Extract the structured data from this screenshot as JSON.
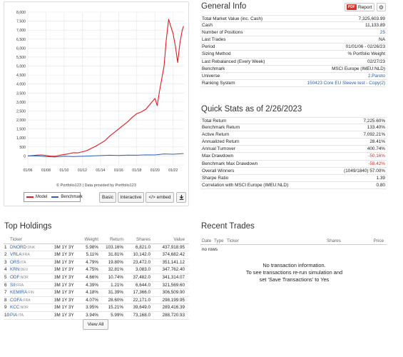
{
  "chart": {
    "credit": "© Portfolio123 | Data provided by Portfolio123",
    "buttons": {
      "basic": "Basic",
      "interactive": "Interactive",
      "embed": "</> embed",
      "download_icon": "download-icon"
    },
    "colors": {
      "model": "#e3191c",
      "benchmark": "#2c63b4"
    }
  },
  "chart_data": {
    "type": "line",
    "x_tick_labels": [
      "01/06",
      "01/08",
      "01/10",
      "01/12",
      "01/14",
      "01/16",
      "01/18",
      "01/20",
      "01/22"
    ],
    "y_tick_labels": [
      "0",
      "500",
      "1,000",
      "1,500",
      "2,000",
      "2,500",
      "3,000",
      "3,500",
      "4,000",
      "4,500",
      "5,000",
      "5,500",
      "6,000",
      "6,500",
      "7,000",
      "7,500",
      "8,000"
    ],
    "ylim": [
      -500,
      8000
    ],
    "grid": true,
    "legend_position": "bottom-left",
    "series": [
      {
        "name": "Model",
        "points": [
          [
            2006.0,
            0
          ],
          [
            2006.5,
            20
          ],
          [
            2007.0,
            45
          ],
          [
            2007.5,
            55
          ],
          [
            2008.0,
            30
          ],
          [
            2008.5,
            -10
          ],
          [
            2009.0,
            -20
          ],
          [
            2009.5,
            40
          ],
          [
            2010.0,
            80
          ],
          [
            2010.5,
            120
          ],
          [
            2011.0,
            180
          ],
          [
            2011.5,
            170
          ],
          [
            2012.0,
            230
          ],
          [
            2012.5,
            300
          ],
          [
            2013.0,
            420
          ],
          [
            2013.5,
            550
          ],
          [
            2014.0,
            700
          ],
          [
            2014.5,
            850
          ],
          [
            2015.0,
            1100
          ],
          [
            2015.5,
            1300
          ],
          [
            2016.0,
            1500
          ],
          [
            2016.5,
            1700
          ],
          [
            2017.0,
            1900
          ],
          [
            2017.5,
            2150
          ],
          [
            2018.0,
            2350
          ],
          [
            2018.5,
            2450
          ],
          [
            2019.0,
            2600
          ],
          [
            2019.5,
            2900
          ],
          [
            2020.0,
            3200
          ],
          [
            2020.25,
            2800
          ],
          [
            2020.5,
            3600
          ],
          [
            2020.75,
            4300
          ],
          [
            2021.0,
            5000
          ],
          [
            2021.25,
            6500
          ],
          [
            2021.5,
            7600
          ],
          [
            2021.75,
            7200
          ],
          [
            2022.0,
            6800
          ],
          [
            2022.25,
            6100
          ],
          [
            2022.5,
            5200
          ],
          [
            2022.75,
            6300
          ],
          [
            2023.0,
            7000
          ],
          [
            2023.15,
            7225
          ]
        ]
      },
      {
        "name": "Benchmark",
        "points": [
          [
            2006.0,
            0
          ],
          [
            2007.0,
            10
          ],
          [
            2008.0,
            -40
          ],
          [
            2009.0,
            -60
          ],
          [
            2010.0,
            -20
          ],
          [
            2011.0,
            -30
          ],
          [
            2012.0,
            -20
          ],
          [
            2013.0,
            0
          ],
          [
            2014.0,
            20
          ],
          [
            2015.0,
            40
          ],
          [
            2016.0,
            30
          ],
          [
            2017.0,
            50
          ],
          [
            2018.0,
            40
          ],
          [
            2019.0,
            60
          ],
          [
            2020.0,
            55
          ],
          [
            2021.0,
            110
          ],
          [
            2022.0,
            95
          ],
          [
            2023.15,
            133
          ]
        ]
      }
    ]
  },
  "general_info": {
    "title": "General Info",
    "report_label": "Report",
    "pdf_badge": "PDF",
    "rows": [
      {
        "label": "Total Market Value (inc. Cash)",
        "value": "7,325,603.99"
      },
      {
        "label": "Cash",
        "value": "11,133.89"
      },
      {
        "label": "Number of Positions",
        "value": "25",
        "link": true
      },
      {
        "label": "Last Trades",
        "value": "NA"
      },
      {
        "label": "Period",
        "value": "01/01/06 - 02/26/23"
      },
      {
        "label": "Sizing Method",
        "value": "% Portfolio Weight"
      },
      {
        "label": "Last Rebalanced (Every Week)",
        "value": "02/27/23"
      },
      {
        "label": "Benchmark",
        "value": "MSCI Europe (IMEU:NLD)"
      },
      {
        "label": "Universe",
        "value": "2.Pareto",
        "link": true
      },
      {
        "label": "Ranking System",
        "value": "150423 Core EU Sleeve test - Copy(2)",
        "link": true
      }
    ]
  },
  "quick_stats": {
    "title": "Quick Stats as of 2/26/2023",
    "rows": [
      {
        "label": "Total Return",
        "value": "7,225.60%"
      },
      {
        "label": "Benchmark Return",
        "value": "133.40%"
      },
      {
        "label": "Active Return",
        "value": "7,092.21%"
      },
      {
        "label": "Annualized Return",
        "value": "28.41%"
      },
      {
        "label": "Annual Turnover",
        "value": "400.74%"
      },
      {
        "label": "Max Drawdown",
        "value": "-50.16%",
        "neg": true
      },
      {
        "label": "Benchmark Max Drawdown",
        "value": "-58.42%",
        "neg": true
      },
      {
        "label": "Overall Winners",
        "value": "(1049/1840) 57.00%"
      },
      {
        "label": "Sharpe Ratio",
        "value": "1.39"
      },
      {
        "label": "Correlation with MSCI Europe (IMEU:NLD)",
        "value": "0.80"
      }
    ]
  },
  "top_holdings": {
    "title": "Top Holdings",
    "headers": {
      "ticker": "Ticker",
      "weight": "Weight",
      "return": "Return",
      "shares": "Shares",
      "value": "Value"
    },
    "period_links": "3M 1Y 3Y",
    "rows": [
      {
        "n": "1",
        "sym": "DNORD",
        "ex": ":DNK",
        "w": "5.98%",
        "r": "103.16%",
        "s": "6,821.0",
        "v": "437,918.95"
      },
      {
        "n": "2",
        "sym": "VRLA",
        "ex": ":FRA",
        "w": "5.11%",
        "r": "31.81%",
        "s": "10,142.0",
        "v": "374,682.42"
      },
      {
        "n": "3",
        "sym": "ORS",
        "ex": ":ITA",
        "w": "4.79%",
        "r": "19.80%",
        "s": "23,472.0",
        "v": "351,141.12"
      },
      {
        "n": "4",
        "sym": "KRN",
        "ex": ":DEU",
        "w": "4.75%",
        "r": "32.81%",
        "s": "3,083.0",
        "v": "347,762.40"
      },
      {
        "n": "5",
        "sym": "ODF",
        "ex": ":NOR",
        "w": "4.66%",
        "r": "10.74%",
        "s": "37,482.0",
        "v": "341,314.07"
      },
      {
        "n": "6",
        "sym": "SII",
        "ex": ":FRA",
        "w": "4.39%",
        "r": "1.21%",
        "s": "6,644.0",
        "v": "321,569.60"
      },
      {
        "n": "7",
        "sym": "KEMIRA",
        "ex": ":FIN",
        "w": "4.18%",
        "r": "31.39%",
        "s": "17,366.0",
        "v": "306,509.90"
      },
      {
        "n": "8",
        "sym": "COFA",
        "ex": ":FRA",
        "w": "4.07%",
        "r": "28.60%",
        "s": "22,171.0",
        "v": "298,199.95"
      },
      {
        "n": "9",
        "sym": "KCC",
        "ex": ":NOR",
        "w": "3.95%",
        "r": "15.21%",
        "s": "39,649.0",
        "v": "289,416.39"
      },
      {
        "n": "10",
        "sym": "PIA",
        "ex": ":ITA",
        "w": "3.94%",
        "r": "5.99%",
        "s": "73,168.0",
        "v": "288,720.93"
      }
    ],
    "view_all": "View All"
  },
  "recent_trades": {
    "title": "Recent Trades",
    "headers": {
      "date": "Date",
      "type": "Type",
      "ticker": "Ticker",
      "shares": "Shares",
      "price": "Price"
    },
    "no_rows": "no rows",
    "message_line1": "No transaction information.",
    "message_line2": "To see transactions re-run simulation and",
    "message_line3": "set 'Save Transactions' to Yes"
  }
}
